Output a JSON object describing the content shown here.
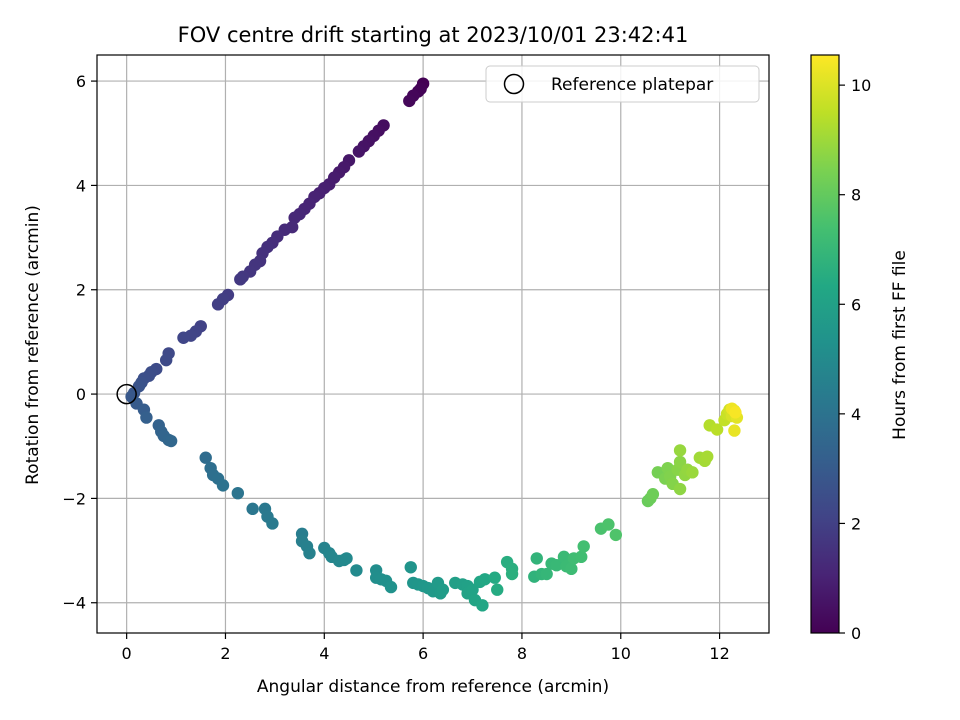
{
  "chart_data": {
    "type": "scatter",
    "title": "FOV centre drift starting at 2023/10/01 23:42:41",
    "xlabel": "Angular distance from reference (arcmin)",
    "ylabel": "Rotation from reference (arcmin)",
    "xlim": [
      -0.6,
      13.0
    ],
    "ylim": [
      -4.58,
      6.5
    ],
    "xticks": [
      0,
      2,
      4,
      6,
      8,
      10,
      12
    ],
    "yticks": [
      -4,
      -2,
      0,
      2,
      4,
      6
    ],
    "grid": true,
    "legend": {
      "position": "top-right",
      "entries": [
        "Reference platepar"
      ]
    },
    "colorbar": {
      "label": "Hours from first FF file",
      "colormap": "viridis",
      "range": [
        0,
        10.55
      ],
      "ticks": [
        0,
        2,
        4,
        6,
        8,
        10
      ]
    },
    "reference_point": {
      "x": 0,
      "y": 0,
      "label": "Reference platepar"
    },
    "points": [
      {
        "x": 6.0,
        "y": 5.95,
        "h": 0.0
      },
      {
        "x": 5.95,
        "y": 5.85,
        "h": 0.05
      },
      {
        "x": 5.9,
        "y": 5.8,
        "h": 0.1
      },
      {
        "x": 5.8,
        "y": 5.72,
        "h": 0.15
      },
      {
        "x": 5.72,
        "y": 5.62,
        "h": 0.2
      },
      {
        "x": 5.2,
        "y": 5.15,
        "h": 0.35
      },
      {
        "x": 5.1,
        "y": 5.05,
        "h": 0.4
      },
      {
        "x": 5.0,
        "y": 4.95,
        "h": 0.45
      },
      {
        "x": 4.9,
        "y": 4.85,
        "h": 0.5
      },
      {
        "x": 4.8,
        "y": 4.75,
        "h": 0.55
      },
      {
        "x": 4.7,
        "y": 4.65,
        "h": 0.6
      },
      {
        "x": 4.5,
        "y": 4.48,
        "h": 0.65
      },
      {
        "x": 4.4,
        "y": 4.35,
        "h": 0.7
      },
      {
        "x": 4.3,
        "y": 4.25,
        "h": 0.75
      },
      {
        "x": 4.2,
        "y": 4.15,
        "h": 0.8
      },
      {
        "x": 4.1,
        "y": 4.02,
        "h": 0.85
      },
      {
        "x": 4.0,
        "y": 3.95,
        "h": 0.9
      },
      {
        "x": 3.9,
        "y": 3.85,
        "h": 0.95
      },
      {
        "x": 3.8,
        "y": 3.78,
        "h": 1.0
      },
      {
        "x": 3.7,
        "y": 3.65,
        "h": 1.05
      },
      {
        "x": 3.6,
        "y": 3.55,
        "h": 1.1
      },
      {
        "x": 3.5,
        "y": 3.45,
        "h": 1.15
      },
      {
        "x": 3.4,
        "y": 3.38,
        "h": 1.2
      },
      {
        "x": 3.35,
        "y": 3.2,
        "h": 1.25
      },
      {
        "x": 3.2,
        "y": 3.15,
        "h": 1.3
      },
      {
        "x": 3.05,
        "y": 3.02,
        "h": 1.35
      },
      {
        "x": 2.95,
        "y": 2.9,
        "h": 1.4
      },
      {
        "x": 2.85,
        "y": 2.82,
        "h": 1.45
      },
      {
        "x": 2.75,
        "y": 2.7,
        "h": 1.5
      },
      {
        "x": 2.7,
        "y": 2.55,
        "h": 1.55
      },
      {
        "x": 2.6,
        "y": 2.48,
        "h": 1.6
      },
      {
        "x": 2.5,
        "y": 2.35,
        "h": 1.65
      },
      {
        "x": 2.35,
        "y": 2.25,
        "h": 1.7
      },
      {
        "x": 2.3,
        "y": 2.2,
        "h": 1.75
      },
      {
        "x": 2.05,
        "y": 1.9,
        "h": 1.85
      },
      {
        "x": 1.95,
        "y": 1.82,
        "h": 1.9
      },
      {
        "x": 1.85,
        "y": 1.72,
        "h": 1.95
      },
      {
        "x": 1.5,
        "y": 1.3,
        "h": 2.05
      },
      {
        "x": 1.4,
        "y": 1.2,
        "h": 2.1
      },
      {
        "x": 1.3,
        "y": 1.12,
        "h": 2.15
      },
      {
        "x": 1.15,
        "y": 1.08,
        "h": 2.2
      },
      {
        "x": 0.85,
        "y": 0.78,
        "h": 2.3
      },
      {
        "x": 0.8,
        "y": 0.65,
        "h": 2.35
      },
      {
        "x": 0.6,
        "y": 0.48,
        "h": 2.4
      },
      {
        "x": 0.5,
        "y": 0.42,
        "h": 2.45
      },
      {
        "x": 0.45,
        "y": 0.35,
        "h": 2.5
      },
      {
        "x": 0.35,
        "y": 0.3,
        "h": 2.55
      },
      {
        "x": 0.3,
        "y": 0.22,
        "h": 2.6
      },
      {
        "x": 0.25,
        "y": 0.15,
        "h": 2.7
      },
      {
        "x": 0.15,
        "y": 0.02,
        "h": 2.8
      },
      {
        "x": 0.1,
        "y": -0.05,
        "h": 2.9
      },
      {
        "x": 0.2,
        "y": -0.18,
        "h": 3.0
      },
      {
        "x": 0.35,
        "y": -0.3,
        "h": 3.1
      },
      {
        "x": 0.4,
        "y": -0.45,
        "h": 3.2
      },
      {
        "x": 0.65,
        "y": -0.6,
        "h": 3.3
      },
      {
        "x": 0.7,
        "y": -0.72,
        "h": 3.35
      },
      {
        "x": 0.75,
        "y": -0.8,
        "h": 3.4
      },
      {
        "x": 0.85,
        "y": -0.88,
        "h": 3.45
      },
      {
        "x": 0.9,
        "y": -0.9,
        "h": 3.5
      },
      {
        "x": 1.6,
        "y": -1.22,
        "h": 3.7
      },
      {
        "x": 1.7,
        "y": -1.42,
        "h": 3.8
      },
      {
        "x": 1.75,
        "y": -1.55,
        "h": 3.85
      },
      {
        "x": 1.85,
        "y": -1.62,
        "h": 3.9
      },
      {
        "x": 1.95,
        "y": -1.75,
        "h": 3.95
      },
      {
        "x": 2.25,
        "y": -1.9,
        "h": 4.05
      },
      {
        "x": 2.55,
        "y": -2.2,
        "h": 4.15
      },
      {
        "x": 2.8,
        "y": -2.2,
        "h": 4.2
      },
      {
        "x": 2.85,
        "y": -2.35,
        "h": 4.25
      },
      {
        "x": 2.95,
        "y": -2.48,
        "h": 4.3
      },
      {
        "x": 3.55,
        "y": -2.68,
        "h": 4.45
      },
      {
        "x": 3.55,
        "y": -2.82,
        "h": 4.5
      },
      {
        "x": 3.65,
        "y": -2.92,
        "h": 4.55
      },
      {
        "x": 3.7,
        "y": -3.05,
        "h": 4.6
      },
      {
        "x": 4.0,
        "y": -2.95,
        "h": 4.7
      },
      {
        "x": 4.1,
        "y": -3.05,
        "h": 4.75
      },
      {
        "x": 4.15,
        "y": -3.12,
        "h": 4.8
      },
      {
        "x": 4.3,
        "y": -3.2,
        "h": 4.85
      },
      {
        "x": 4.4,
        "y": -3.18,
        "h": 4.9
      },
      {
        "x": 4.45,
        "y": -3.15,
        "h": 4.95
      },
      {
        "x": 4.65,
        "y": -3.38,
        "h": 5.0
      },
      {
        "x": 5.05,
        "y": -3.38,
        "h": 5.1
      },
      {
        "x": 5.05,
        "y": -3.52,
        "h": 5.15
      },
      {
        "x": 5.15,
        "y": -3.55,
        "h": 5.2
      },
      {
        "x": 5.25,
        "y": -3.58,
        "h": 5.25
      },
      {
        "x": 5.35,
        "y": -3.7,
        "h": 5.3
      },
      {
        "x": 5.75,
        "y": -3.32,
        "h": 5.4
      },
      {
        "x": 5.8,
        "y": -3.62,
        "h": 5.45
      },
      {
        "x": 5.9,
        "y": -3.65,
        "h": 5.5
      },
      {
        "x": 6.0,
        "y": -3.68,
        "h": 5.55
      },
      {
        "x": 6.1,
        "y": -3.72,
        "h": 5.6
      },
      {
        "x": 6.2,
        "y": -3.78,
        "h": 5.65
      },
      {
        "x": 6.3,
        "y": -3.62,
        "h": 5.7
      },
      {
        "x": 6.35,
        "y": -3.82,
        "h": 5.75
      },
      {
        "x": 6.4,
        "y": -3.75,
        "h": 5.8
      },
      {
        "x": 6.65,
        "y": -3.62,
        "h": 5.9
      },
      {
        "x": 6.8,
        "y": -3.65,
        "h": 5.95
      },
      {
        "x": 6.9,
        "y": -3.68,
        "h": 6.0
      },
      {
        "x": 6.9,
        "y": -3.82,
        "h": 6.05
      },
      {
        "x": 7.0,
        "y": -3.75,
        "h": 6.1
      },
      {
        "x": 7.05,
        "y": -3.95,
        "h": 6.15
      },
      {
        "x": 7.15,
        "y": -3.6,
        "h": 6.2
      },
      {
        "x": 7.2,
        "y": -4.05,
        "h": 6.25
      },
      {
        "x": 7.25,
        "y": -3.55,
        "h": 6.3
      },
      {
        "x": 7.45,
        "y": -3.52,
        "h": 6.4
      },
      {
        "x": 7.5,
        "y": -3.75,
        "h": 6.45
      },
      {
        "x": 7.7,
        "y": -3.22,
        "h": 6.55
      },
      {
        "x": 7.8,
        "y": -3.35,
        "h": 6.6
      },
      {
        "x": 7.8,
        "y": -3.45,
        "h": 6.65
      },
      {
        "x": 8.25,
        "y": -3.5,
        "h": 6.8
      },
      {
        "x": 8.3,
        "y": -3.15,
        "h": 6.85
      },
      {
        "x": 8.4,
        "y": -3.45,
        "h": 6.9
      },
      {
        "x": 8.5,
        "y": -3.45,
        "h": 6.95
      },
      {
        "x": 8.6,
        "y": -3.25,
        "h": 7.0
      },
      {
        "x": 8.7,
        "y": -3.28,
        "h": 7.05
      },
      {
        "x": 8.85,
        "y": -3.12,
        "h": 7.1
      },
      {
        "x": 8.9,
        "y": -3.3,
        "h": 7.15
      },
      {
        "x": 9.0,
        "y": -3.35,
        "h": 7.2
      },
      {
        "x": 9.05,
        "y": -3.15,
        "h": 7.25
      },
      {
        "x": 9.2,
        "y": -3.12,
        "h": 7.3
      },
      {
        "x": 9.25,
        "y": -2.92,
        "h": 7.35
      },
      {
        "x": 9.6,
        "y": -2.58,
        "h": 7.5
      },
      {
        "x": 9.75,
        "y": -2.5,
        "h": 7.55
      },
      {
        "x": 9.9,
        "y": -2.7,
        "h": 7.6
      },
      {
        "x": 10.55,
        "y": -2.05,
        "h": 8.1
      },
      {
        "x": 10.6,
        "y": -2.0,
        "h": 8.15
      },
      {
        "x": 10.65,
        "y": -1.92,
        "h": 8.2
      },
      {
        "x": 10.75,
        "y": -1.5,
        "h": 8.35
      },
      {
        "x": 10.9,
        "y": -1.62,
        "h": 8.45
      },
      {
        "x": 10.95,
        "y": -1.42,
        "h": 8.5
      },
      {
        "x": 11.0,
        "y": -1.58,
        "h": 8.55
      },
      {
        "x": 11.05,
        "y": -1.72,
        "h": 8.6
      },
      {
        "x": 11.15,
        "y": -1.45,
        "h": 8.65
      },
      {
        "x": 11.2,
        "y": -1.3,
        "h": 8.7
      },
      {
        "x": 11.2,
        "y": -1.82,
        "h": 8.75
      },
      {
        "x": 11.3,
        "y": -1.55,
        "h": 8.8
      },
      {
        "x": 11.35,
        "y": -1.45,
        "h": 8.85
      },
      {
        "x": 11.2,
        "y": -1.08,
        "h": 8.9
      },
      {
        "x": 11.45,
        "y": -1.5,
        "h": 8.95
      },
      {
        "x": 11.6,
        "y": -1.22,
        "h": 9.05
      },
      {
        "x": 11.7,
        "y": -1.28,
        "h": 9.1
      },
      {
        "x": 11.75,
        "y": -1.2,
        "h": 9.15
      },
      {
        "x": 11.8,
        "y": -0.6,
        "h": 9.35
      },
      {
        "x": 11.95,
        "y": -0.68,
        "h": 9.45
      },
      {
        "x": 12.1,
        "y": -0.5,
        "h": 9.6
      },
      {
        "x": 12.15,
        "y": -0.38,
        "h": 9.7
      },
      {
        "x": 12.2,
        "y": -0.3,
        "h": 9.8
      },
      {
        "x": 12.25,
        "y": -0.42,
        "h": 9.9
      },
      {
        "x": 12.3,
        "y": -0.32,
        "h": 10.0
      },
      {
        "x": 12.35,
        "y": -0.45,
        "h": 10.1
      },
      {
        "x": 12.3,
        "y": -0.7,
        "h": 10.2
      },
      {
        "x": 12.25,
        "y": -0.28,
        "h": 10.3
      },
      {
        "x": 12.32,
        "y": -0.35,
        "h": 10.45
      }
    ]
  }
}
